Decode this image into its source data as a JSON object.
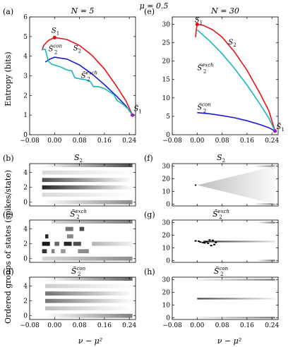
{
  "figure": {
    "title": "μ = 0.5",
    "ylabel_top": "Entropy (bits)",
    "ylabel_bottom": "Ordered groups of states (spikes/state)",
    "xlabel": "ν − μ²",
    "x_ticks": [
      "−0.08",
      "0.00",
      "0.08",
      "0.16",
      "0.24"
    ]
  },
  "colors": {
    "S2": "#e8121b",
    "S2exch": "#18b8b8",
    "S2con": "#1a1ad8",
    "S1_marker": "#9a1fc4",
    "S1_dot": "#e8121b"
  },
  "chart_data": [
    {
      "panel": "a",
      "label": "(a)",
      "title": "N = 5",
      "type": "line",
      "ylim": [
        0,
        6
      ],
      "xlim": [
        -0.08,
        0.26
      ],
      "yticks": [
        "0",
        "1",
        "2",
        "3",
        "4",
        "5",
        "6"
      ],
      "series": [
        {
          "name": "S2",
          "color_key": "S2",
          "points": [
            [
              -0.04,
              4.3
            ],
            [
              -0.035,
              4.55
            ],
            [
              -0.02,
              4.8
            ],
            [
              0.0,
              4.95
            ],
            [
              0.04,
              4.85
            ],
            [
              0.08,
              4.55
            ],
            [
              0.12,
              4.05
            ],
            [
              0.16,
              3.35
            ],
            [
              0.2,
              2.45
            ],
            [
              0.23,
              1.7
            ],
            [
              0.25,
              1.0
            ]
          ]
        },
        {
          "name": "S̃2^con",
          "color_key": "S2con",
          "points": [
            [
              -0.03,
              3.7
            ],
            [
              -0.015,
              3.85
            ],
            [
              0.0,
              3.95
            ],
            [
              0.04,
              3.85
            ],
            [
              0.08,
              3.55
            ],
            [
              0.12,
              3.1
            ],
            [
              0.16,
              2.55
            ],
            [
              0.2,
              1.95
            ],
            [
              0.23,
              1.45
            ],
            [
              0.25,
              1.0
            ]
          ]
        },
        {
          "name": "S̃2^exch",
          "color_key": "S2exch",
          "points": [
            [
              -0.04,
              4.35
            ],
            [
              -0.03,
              4.35
            ],
            [
              -0.02,
              3.75
            ],
            [
              -0.01,
              3.6
            ],
            [
              0.0,
              3.55
            ],
            [
              0.02,
              3.45
            ],
            [
              0.04,
              3.3
            ],
            [
              0.055,
              3.25
            ],
            [
              0.065,
              2.9
            ],
            [
              0.08,
              2.85
            ],
            [
              0.1,
              2.8
            ],
            [
              0.115,
              2.7
            ],
            [
              0.125,
              2.45
            ],
            [
              0.14,
              2.45
            ],
            [
              0.16,
              2.35
            ],
            [
              0.175,
              2.2
            ],
            [
              0.19,
              2.05
            ],
            [
              0.2,
              1.75
            ],
            [
              0.22,
              1.55
            ],
            [
              0.24,
              1.25
            ],
            [
              0.25,
              1.0
            ]
          ]
        }
      ],
      "annotations": [
        {
          "text": "S",
          "sub": "1",
          "x": -0.01,
          "y": 5.2
        },
        {
          "text": "S",
          "sub": "2",
          "x": 0.06,
          "y": 4.3
        },
        {
          "text": "S̃",
          "sub": "2",
          "sup": "con",
          "x": -0.02,
          "y": 4.25
        },
        {
          "text": "S̃",
          "sub": "2",
          "sup": "exch",
          "x": 0.085,
          "y": 2.9
        },
        {
          "text": "S̃",
          "sub": "1",
          "x": 0.254,
          "y": 1.2
        }
      ],
      "markers": [
        {
          "x": 0.0,
          "y": 4.95,
          "color_key": "S1_dot"
        },
        {
          "x": 0.25,
          "y": 1.0,
          "color_key": "S1_marker"
        }
      ]
    },
    {
      "panel": "e",
      "label": "(e)",
      "title": "N = 30",
      "type": "line",
      "ylim": [
        0,
        32
      ],
      "xlim": [
        -0.08,
        0.26
      ],
      "yticks": [
        "0",
        "5",
        "10",
        "15",
        "20",
        "25",
        "30"
      ],
      "series": [
        {
          "name": "S2",
          "color_key": "S2",
          "points": [
            [
              -0.005,
              26.5
            ],
            [
              -0.003,
              28.5
            ],
            [
              0.0,
              30.0
            ],
            [
              0.02,
              29.7
            ],
            [
              0.05,
              28.5
            ],
            [
              0.08,
              26.5
            ],
            [
              0.12,
              22.5
            ],
            [
              0.16,
              17.5
            ],
            [
              0.2,
              11.5
            ],
            [
              0.23,
              6.5
            ],
            [
              0.25,
              1.0
            ]
          ]
        },
        {
          "name": "S̃2^exch",
          "color_key": "S2exch",
          "points": [
            [
              0.0,
              28.5
            ],
            [
              0.04,
              25.5
            ],
            [
              0.08,
              22.0
            ],
            [
              0.12,
              18.0
            ],
            [
              0.16,
              13.5
            ],
            [
              0.2,
              8.5
            ],
            [
              0.23,
              4.5
            ],
            [
              0.25,
              1.0
            ]
          ]
        },
        {
          "name": "S̃2^con",
          "color_key": "S2con",
          "points": [
            [
              0.0,
              6.0
            ],
            [
              0.04,
              5.7
            ],
            [
              0.08,
              5.2
            ],
            [
              0.12,
              4.6
            ],
            [
              0.16,
              3.8
            ],
            [
              0.2,
              2.8
            ],
            [
              0.23,
              1.9
            ],
            [
              0.25,
              1.0
            ]
          ]
        }
      ],
      "annotations": [
        {
          "text": "S",
          "sub": "1",
          "x": -0.008,
          "y": 30.6
        },
        {
          "text": "S",
          "sub": "2",
          "x": 0.1,
          "y": 24.5
        },
        {
          "text": "S̃",
          "sub": "2",
          "sup": "exch",
          "x": 0.0,
          "y": 17.5
        },
        {
          "text": "S̃",
          "sub": "2",
          "sup": "con",
          "x": 0.0,
          "y": 6.8
        },
        {
          "text": "S̃",
          "sub": "1",
          "x": 0.254,
          "y": 1.5
        }
      ],
      "markers": [
        {
          "x": 0.0,
          "y": 30.0,
          "color_key": "S1_dot"
        },
        {
          "x": 0.25,
          "y": 1.0,
          "color_key": "S1_marker"
        }
      ]
    },
    {
      "panel": "b",
      "label": "(b)",
      "title": "S2",
      "type": "heatmap",
      "ylim": [
        -0.5,
        5.2
      ],
      "yticks": [
        "0",
        "2",
        "4"
      ],
      "bars": [
        {
          "y": 5,
          "x0": -0.04,
          "x1": 0.25,
          "start": 0.0,
          "end": 0.7
        },
        {
          "y": 4,
          "x0": -0.04,
          "x1": 0.25,
          "start": 0.15,
          "end": 0.0
        },
        {
          "y": 3,
          "x0": -0.04,
          "x1": 0.25,
          "start": 0.7,
          "end": 0.0
        },
        {
          "y": 2,
          "x0": -0.04,
          "x1": 0.25,
          "start": 0.85,
          "end": 0.0
        },
        {
          "y": 1,
          "x0": -0.04,
          "x1": 0.25,
          "start": 0.15,
          "end": 0.0
        },
        {
          "y": 0,
          "x0": -0.04,
          "x1": 0.25,
          "start": 0.0,
          "end": 0.45
        }
      ]
    },
    {
      "panel": "f",
      "label": "(f)",
      "title": "S2",
      "type": "heatmap",
      "ylim": [
        -1.5,
        32
      ],
      "yticks": [
        "0",
        "10",
        "20",
        "30"
      ],
      "bars": [
        {
          "y": 30,
          "x0": 0.18,
          "x1": 0.25,
          "start": 0.0,
          "end": 0.5
        },
        {
          "y": 0,
          "x0": 0.18,
          "x1": 0.25,
          "start": 0.0,
          "end": 0.5
        }
      ],
      "cone": {
        "x0": 0.0,
        "x1": 0.25,
        "y": 15,
        "spread": 15,
        "peak": 0.25
      },
      "dot": {
        "x": -0.005,
        "y": 15
      }
    },
    {
      "panel": "c",
      "label": "(c)",
      "title": "S̃2exch",
      "type": "heatmap",
      "ylim": [
        -0.5,
        5.2
      ],
      "yticks": [
        "0",
        "2",
        "4"
      ],
      "bars": [
        {
          "y": 5,
          "x0": -0.01,
          "x1": 0.25,
          "start": 0.15,
          "end": 0.5
        },
        {
          "y": 4,
          "x0": 0.035,
          "x1": 0.06,
          "start": 0.55,
          "end": 0.55
        },
        {
          "y": 4,
          "x0": 0.08,
          "x1": 0.095,
          "start": 0.7,
          "end": 0.7
        },
        {
          "y": 3,
          "x0": -0.03,
          "x1": -0.02,
          "start": 0.85,
          "end": 0.85
        },
        {
          "y": 3,
          "x0": 0.04,
          "x1": 0.06,
          "start": 0.45,
          "end": 0.45
        },
        {
          "y": 2,
          "x0": -0.04,
          "x1": -0.015,
          "start": 0.9,
          "end": 0.9
        },
        {
          "y": 2,
          "x0": 0.0,
          "x1": 0.015,
          "start": 0.6,
          "end": 0.6
        },
        {
          "y": 2,
          "x0": 0.03,
          "x1": 0.055,
          "start": 0.85,
          "end": 0.85
        },
        {
          "y": 2,
          "x0": 0.06,
          "x1": 0.085,
          "start": 0.7,
          "end": 0.7
        },
        {
          "y": 2,
          "x0": 0.12,
          "x1": 0.25,
          "start": 0.3,
          "end": 0.05
        },
        {
          "y": 1,
          "x0": -0.04,
          "x1": -0.025,
          "start": 0.8,
          "end": 0.8
        },
        {
          "y": 1,
          "x0": -0.01,
          "x1": 0.0,
          "start": 0.5,
          "end": 0.5
        },
        {
          "y": 1,
          "x0": 0.02,
          "x1": 0.035,
          "start": 0.4,
          "end": 0.4
        },
        {
          "y": 1,
          "x0": 0.075,
          "x1": 0.11,
          "start": 0.45,
          "end": 0.45
        },
        {
          "y": 0,
          "x0": -0.04,
          "x1": 0.25,
          "start": 0.15,
          "end": 0.45
        }
      ]
    },
    {
      "panel": "g",
      "label": "(g)",
      "title": "S̃2exch",
      "type": "heatmap",
      "ylim": [
        -1.5,
        32
      ],
      "yticks": [
        "0",
        "10",
        "20",
        "30"
      ],
      "bars": [
        {
          "y": 30,
          "x0": 0.19,
          "x1": 0.25,
          "start": 0.0,
          "end": 0.55
        },
        {
          "y": 15,
          "x0": 0.02,
          "x1": 0.25,
          "start": 0.85,
          "end": 0.1
        },
        {
          "y": 0,
          "x0": 0.19,
          "x1": 0.25,
          "start": 0.0,
          "end": 0.55
        }
      ],
      "specks": [
        [
          -0.005,
          15.5
        ],
        [
          0.005,
          15.2
        ],
        [
          0.01,
          14.6
        ],
        [
          0.018,
          14.2
        ],
        [
          0.024,
          13.9
        ],
        [
          0.03,
          14.8
        ],
        [
          0.035,
          13.6
        ],
        [
          0.04,
          16.2
        ],
        [
          0.045,
          11.8
        ],
        [
          0.05,
          15.9
        ],
        [
          0.055,
          12.6
        ],
        [
          0.06,
          14.3
        ]
      ]
    },
    {
      "panel": "d",
      "label": "(d)",
      "title": "S̃2con",
      "type": "heatmap",
      "ylim": [
        -0.5,
        5.2
      ],
      "yticks": [
        "0",
        "2",
        "4"
      ],
      "bars": [
        {
          "y": 5,
          "x0": -0.03,
          "x1": 0.25,
          "start": 0.0,
          "end": 0.6
        },
        {
          "y": 4,
          "x0": -0.03,
          "x1": 0.25,
          "start": 0.2,
          "end": 0.0
        },
        {
          "y": 3,
          "x0": -0.03,
          "x1": 0.25,
          "start": 0.55,
          "end": 0.0
        },
        {
          "y": 2,
          "x0": -0.03,
          "x1": 0.25,
          "start": 0.55,
          "end": 0.0
        },
        {
          "y": 1,
          "x0": -0.03,
          "x1": 0.25,
          "start": 0.25,
          "end": 0.0
        },
        {
          "y": 0,
          "x0": -0.03,
          "x1": 0.25,
          "start": 0.0,
          "end": 0.5
        }
      ]
    },
    {
      "panel": "h",
      "label": "(h)",
      "title": "S̃2con",
      "type": "heatmap",
      "ylim": [
        -1.5,
        32
      ],
      "yticks": [
        "0",
        "10",
        "20",
        "30"
      ],
      "bars": [
        {
          "y": 30,
          "x0": 0.0,
          "x1": 0.25,
          "start": 0.05,
          "end": 0.55
        },
        {
          "y": 15,
          "x0": 0.0,
          "x1": 0.25,
          "start": 0.75,
          "end": 0.05
        },
        {
          "y": 0,
          "x0": 0.0,
          "x1": 0.25,
          "start": 0.05,
          "end": 0.55
        }
      ]
    }
  ]
}
